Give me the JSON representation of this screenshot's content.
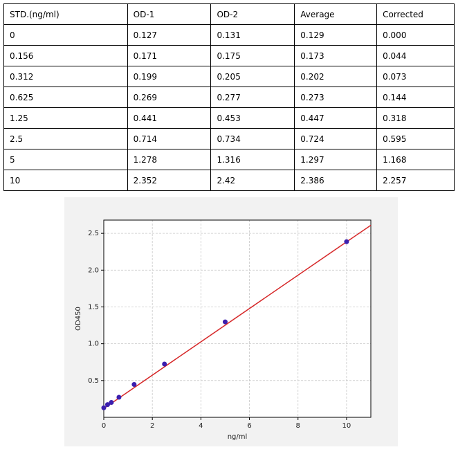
{
  "table": {
    "header": [
      "STD.(ng/ml)",
      "OD-1",
      "OD-2",
      "Average",
      "Corrected"
    ],
    "rows": [
      [
        "0",
        "0.127",
        "0.131",
        "0.129",
        "0.000"
      ],
      [
        "0.156",
        "0.171",
        "0.175",
        "0.173",
        "0.044"
      ],
      [
        "0.312",
        "0.199",
        "0.205",
        "0.202",
        "0.073"
      ],
      [
        "0.625",
        "0.269",
        "0.277",
        "0.273",
        "0.144"
      ],
      [
        "1.25",
        "0.441",
        "0.453",
        "0.447",
        "0.318"
      ],
      [
        "2.5",
        "0.714",
        "0.734",
        "0.724",
        "0.595"
      ],
      [
        "5",
        "1.278",
        "1.316",
        "1.297",
        "1.168"
      ],
      [
        "10",
        "2.352",
        "2.42",
        "2.386",
        "2.257"
      ]
    ]
  },
  "chart_data": {
    "type": "scatter",
    "xlabel": "ng/ml",
    "ylabel": "OD450",
    "x": [
      0,
      0.156,
      0.312,
      0.625,
      1.25,
      2.5,
      5,
      10
    ],
    "values": [
      0.129,
      0.173,
      0.202,
      0.273,
      0.447,
      0.724,
      1.297,
      2.386
    ],
    "color": "#3b1fae",
    "fit_line": {
      "x": [
        0,
        11
      ],
      "values": [
        0.12,
        2.61
      ],
      "color": "#d62728"
    },
    "xlim": [
      0,
      11
    ],
    "ylim": [
      0,
      2.68
    ],
    "xticks": [
      0,
      2,
      4,
      6,
      8,
      10
    ],
    "yticks": [
      0.5,
      {
        "value": 1,
        "label": "1.0"
      },
      1.5,
      {
        "value": 2,
        "label": "2.0"
      },
      2.5
    ],
    "grid": true
  }
}
